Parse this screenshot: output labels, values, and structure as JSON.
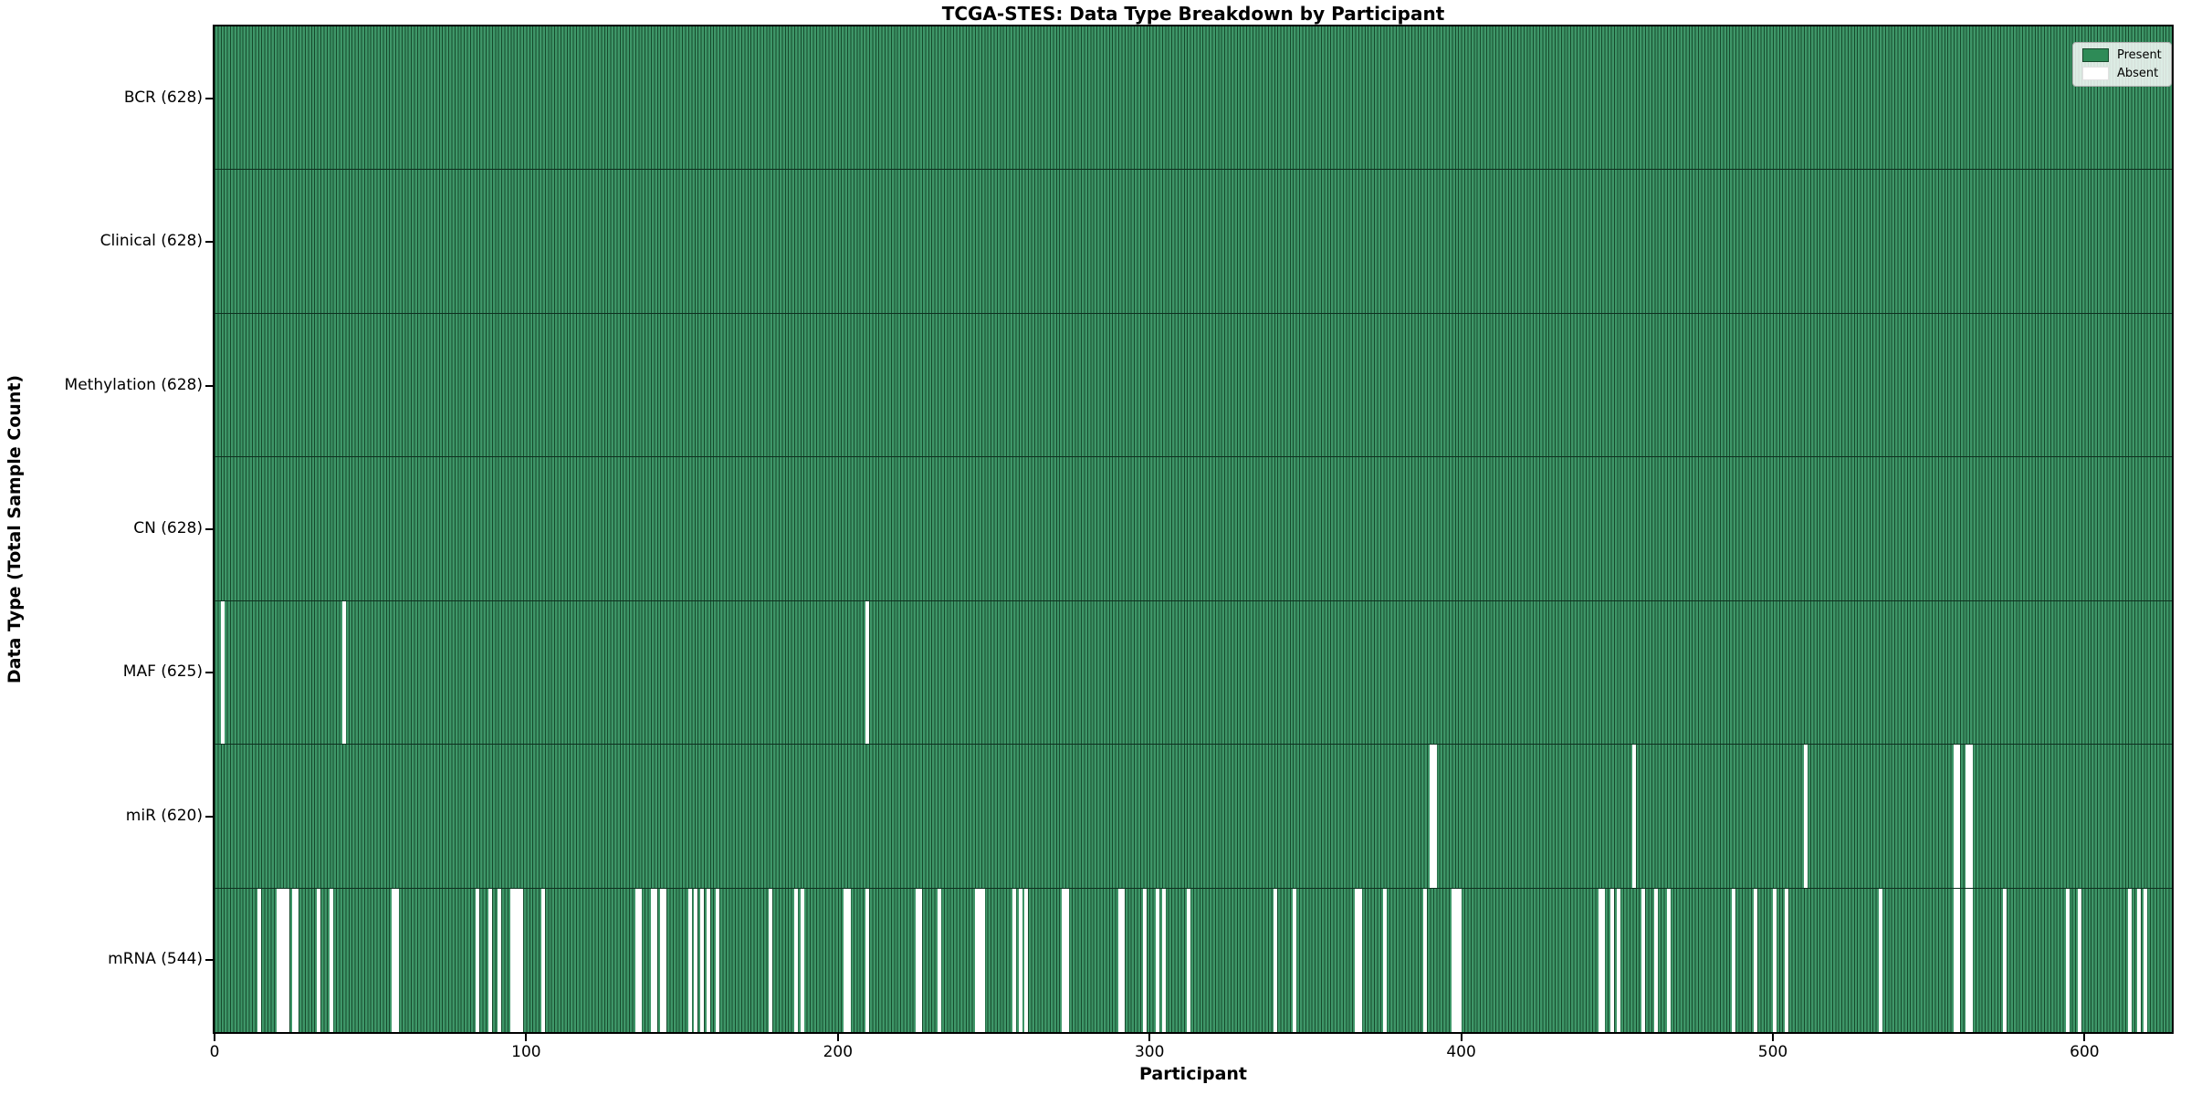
{
  "chart_data": {
    "type": "heatmap",
    "title": "TCGA-STES: Data Type Breakdown by Participant",
    "xlabel": "Participant",
    "ylabel": "Data Type (Total Sample Count)",
    "n_participants": 628,
    "x_axis_range": [
      0,
      628
    ],
    "x_ticks": [
      0,
      100,
      200,
      300,
      400,
      500,
      600
    ],
    "legend": {
      "position": "upper right",
      "present_label": "Present",
      "absent_label": "Absent"
    },
    "colors": {
      "present_fill": "#3E9668",
      "bar_edge": "#164A2C",
      "absent": "#FFFFFF",
      "row_divider": "#0e301f"
    },
    "rows": [
      {
        "label": "BCR (628)",
        "data_type": "BCR",
        "present_count": 628,
        "absent_participants": []
      },
      {
        "label": "Clinical (628)",
        "data_type": "Clinical",
        "present_count": 628,
        "absent_participants": []
      },
      {
        "label": "Methylation (628)",
        "data_type": "Methylation",
        "present_count": 628,
        "absent_participants": []
      },
      {
        "label": "CN (628)",
        "data_type": "CN",
        "present_count": 628,
        "absent_participants": []
      },
      {
        "label": "MAF (625)",
        "data_type": "MAF",
        "present_count": 625,
        "absent_participants": [
          2,
          41,
          209
        ]
      },
      {
        "label": "miR (620)",
        "data_type": "miR",
        "present_count": 620,
        "absent_participants": [
          390,
          391,
          455,
          510,
          558,
          559,
          562,
          563
        ]
      },
      {
        "label": "mRNA (544)",
        "data_type": "mRNA",
        "present_count": 544,
        "absent_participants": [
          14,
          20,
          21,
          22,
          23,
          25,
          26,
          33,
          37,
          57,
          58,
          84,
          88,
          91,
          95,
          96,
          97,
          98,
          105,
          135,
          136,
          140,
          141,
          143,
          144,
          152,
          154,
          156,
          158,
          161,
          178,
          186,
          188,
          202,
          203,
          209,
          225,
          226,
          232,
          244,
          245,
          246,
          256,
          258,
          260,
          272,
          273,
          290,
          291,
          298,
          302,
          304,
          312,
          340,
          346,
          366,
          367,
          375,
          388,
          397,
          398,
          399,
          444,
          445,
          448,
          450,
          458,
          462,
          466,
          487,
          494,
          500,
          504,
          534,
          558,
          559,
          562,
          563,
          574,
          594,
          598,
          614,
          617,
          619
        ]
      }
    ]
  }
}
